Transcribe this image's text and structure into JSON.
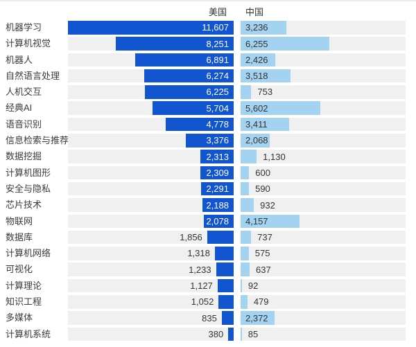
{
  "header": {
    "left_series_label": "美国",
    "right_series_label": "中国"
  },
  "colors": {
    "usa_bar": "#1155d0",
    "china_bar": "#a3d3f0",
    "track": "#f0f0f1",
    "text": "#333333",
    "value_on_dark_bar": "#ffffff",
    "top_border": "#ececec"
  },
  "chart_data": {
    "type": "bar",
    "orientation": "horizontal-paired",
    "title": "",
    "xlabel": "",
    "ylabel": "",
    "xmax": 11607,
    "grid": false,
    "legend_position": "top",
    "value_format": "thousands-comma",
    "categories": [
      "机器学习",
      "计算机视觉",
      "机器人",
      "自然语言处理",
      "人机交互",
      "经典AI",
      "语音识别",
      "信息检索与推荐",
      "数据挖掘",
      "计算机图形",
      "安全与隐私",
      "芯片技术",
      "物联网",
      "数据库",
      "计算机网络",
      "可视化",
      "计算理论",
      "知识工程",
      "多媒体",
      "计算机系统"
    ],
    "series": [
      {
        "name": "美国",
        "values": [
          11607,
          8251,
          6891,
          6274,
          6225,
          5704,
          4778,
          3376,
          2313,
          2309,
          2291,
          2188,
          2078,
          1856,
          1318,
          1233,
          1127,
          1052,
          835,
          380
        ]
      },
      {
        "name": "中国",
        "values": [
          3236,
          6255,
          2426,
          3518,
          753,
          5602,
          3411,
          2068,
          1130,
          600,
          590,
          932,
          4157,
          737,
          575,
          637,
          92,
          479,
          2372,
          85
        ]
      }
    ]
  }
}
